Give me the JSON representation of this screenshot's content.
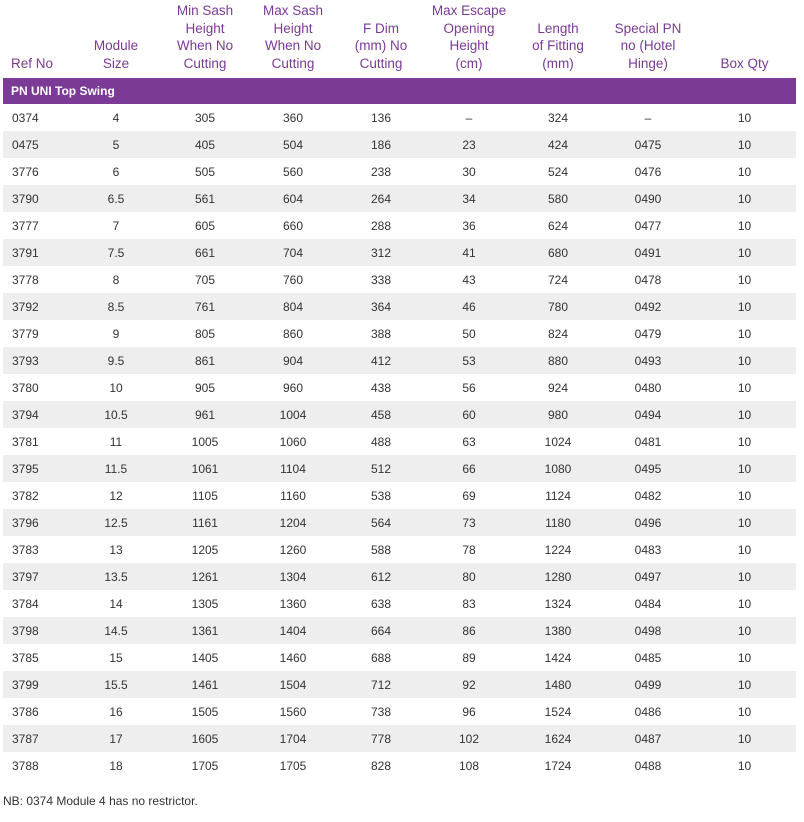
{
  "headers": [
    "Ref No",
    "Module Size",
    "Min Sash Height When No Cutting",
    "Max Sash Height When No Cutting",
    "F Dim (mm) No Cutting",
    "Max Escape Opening Height (cm)",
    "Length of Fitting (mm)",
    "Special PN no (Hotel Hinge)",
    "Box Qty"
  ],
  "header_lines": [
    [
      "Ref No"
    ],
    [
      "Module",
      "Size"
    ],
    [
      "Min Sash",
      "Height",
      "When No",
      "Cutting"
    ],
    [
      "Max Sash",
      "Height",
      "When No",
      "Cutting"
    ],
    [
      "F Dim",
      "(mm) No",
      "Cutting"
    ],
    [
      "Max Escape",
      "Opening",
      "Height",
      "(cm)"
    ],
    [
      "Length",
      "of Fitting",
      "(mm)"
    ],
    [
      "Special PN",
      "no (Hotel",
      "Hinge)"
    ],
    [
      "Box Qty"
    ]
  ],
  "section_title": "PN UNI Top Swing",
  "rows": [
    [
      "0374",
      "4",
      "305",
      "360",
      "136",
      "–",
      "324",
      "–",
      "10"
    ],
    [
      "0475",
      "5",
      "405",
      "504",
      "186",
      "23",
      "424",
      "0475",
      "10"
    ],
    [
      "3776",
      "6",
      "505",
      "560",
      "238",
      "30",
      "524",
      "0476",
      "10"
    ],
    [
      "3790",
      "6.5",
      "561",
      "604",
      "264",
      "34",
      "580",
      "0490",
      "10"
    ],
    [
      "3777",
      "7",
      "605",
      "660",
      "288",
      "36",
      "624",
      "0477",
      "10"
    ],
    [
      "3791",
      "7.5",
      "661",
      "704",
      "312",
      "41",
      "680",
      "0491",
      "10"
    ],
    [
      "3778",
      "8",
      "705",
      "760",
      "338",
      "43",
      "724",
      "0478",
      "10"
    ],
    [
      "3792",
      "8.5",
      "761",
      "804",
      "364",
      "46",
      "780",
      "0492",
      "10"
    ],
    [
      "3779",
      "9",
      "805",
      "860",
      "388",
      "50",
      "824",
      "0479",
      "10"
    ],
    [
      "3793",
      "9.5",
      "861",
      "904",
      "412",
      "53",
      "880",
      "0493",
      "10"
    ],
    [
      "3780",
      "10",
      "905",
      "960",
      "438",
      "56",
      "924",
      "0480",
      "10"
    ],
    [
      "3794",
      "10.5",
      "961",
      "1004",
      "458",
      "60",
      "980",
      "0494",
      "10"
    ],
    [
      "3781",
      "11",
      "1005",
      "1060",
      "488",
      "63",
      "1024",
      "0481",
      "10"
    ],
    [
      "3795",
      "11.5",
      "1061",
      "1104",
      "512",
      "66",
      "1080",
      "0495",
      "10"
    ],
    [
      "3782",
      "12",
      "1105",
      "1160",
      "538",
      "69",
      "1124",
      "0482",
      "10"
    ],
    [
      "3796",
      "12.5",
      "1161",
      "1204",
      "564",
      "73",
      "1180",
      "0496",
      "10"
    ],
    [
      "3783",
      "13",
      "1205",
      "1260",
      "588",
      "78",
      "1224",
      "0483",
      "10"
    ],
    [
      "3797",
      "13.5",
      "1261",
      "1304",
      "612",
      "80",
      "1280",
      "0497",
      "10"
    ],
    [
      "3784",
      "14",
      "1305",
      "1360",
      "638",
      "83",
      "1324",
      "0484",
      "10"
    ],
    [
      "3798",
      "14.5",
      "1361",
      "1404",
      "664",
      "86",
      "1380",
      "0498",
      "10"
    ],
    [
      "3785",
      "15",
      "1405",
      "1460",
      "688",
      "89",
      "1424",
      "0485",
      "10"
    ],
    [
      "3799",
      "15.5",
      "1461",
      "1504",
      "712",
      "92",
      "1480",
      "0499",
      "10"
    ],
    [
      "3786",
      "16",
      "1505",
      "1560",
      "738",
      "96",
      "1524",
      "0486",
      "10"
    ],
    [
      "3787",
      "17",
      "1605",
      "1704",
      "778",
      "102",
      "1624",
      "0487",
      "10"
    ],
    [
      "3788",
      "18",
      "1705",
      "1705",
      "828",
      "108",
      "1724",
      "0488",
      "10"
    ]
  ],
  "note": "NB: 0374 Module 4 has no restrictor.",
  "colors": {
    "header_text": "#7b3a96",
    "section_bg": "#7b3a96",
    "row_shade": "#eeeeee"
  }
}
